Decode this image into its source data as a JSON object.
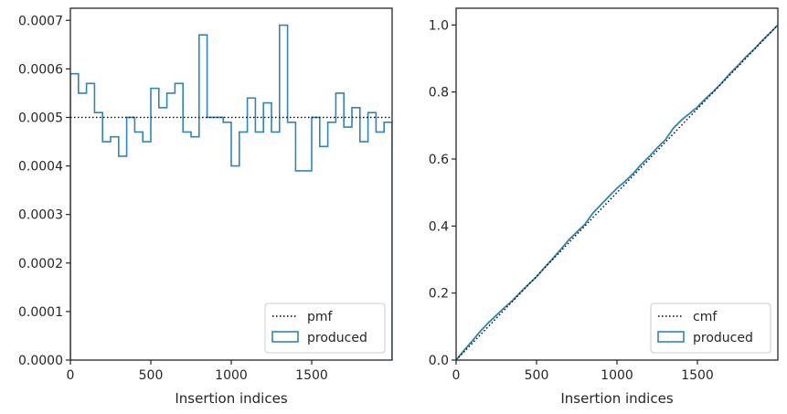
{
  "colors": {
    "produced": "#2e86b8",
    "reference": "#000000",
    "frame": "#262626",
    "legend_border": "#cccccc"
  },
  "chart_data": [
    {
      "type": "line",
      "subtype": "step-histogram",
      "title": "",
      "xlabel": "Insertion indices",
      "ylabel": "",
      "xlim": [
        0,
        2000
      ],
      "ylim": [
        0,
        0.000725
      ],
      "xticks": [
        0,
        500,
        1000,
        1500
      ],
      "xtick_labels": [
        "0",
        "500",
        "1000",
        "1500"
      ],
      "yticks": [
        0,
        0.0001,
        0.0002,
        0.0003,
        0.0004,
        0.0005,
        0.0006,
        0.0007
      ],
      "ytick_labels": [
        "0.0000",
        "0.0001",
        "0.0002",
        "0.0003",
        "0.0004",
        "0.0005",
        "0.0006",
        "0.0007"
      ],
      "legend_position": "lower-right",
      "series": [
        {
          "name": "pmf",
          "style": "dotted",
          "x": [
            0,
            2000
          ],
          "y": [
            0.0005,
            0.0005
          ]
        },
        {
          "name": "produced",
          "style": "step",
          "bin_edges": [
            0,
            50,
            100,
            150,
            200,
            250,
            300,
            350,
            400,
            450,
            500,
            550,
            600,
            650,
            700,
            750,
            800,
            850,
            900,
            950,
            1000,
            1050,
            1100,
            1150,
            1200,
            1250,
            1300,
            1350,
            1400,
            1450,
            1500,
            1550,
            1600,
            1650,
            1700,
            1750,
            1800,
            1850,
            1900,
            1950,
            2000
          ],
          "values": [
            0.00059,
            0.00055,
            0.00057,
            0.00051,
            0.00045,
            0.00046,
            0.00042,
            0.0005,
            0.00047,
            0.00045,
            0.00056,
            0.00052,
            0.00055,
            0.00057,
            0.00047,
            0.00046,
            0.00067,
            0.0005,
            0.0005,
            0.00049,
            0.0004,
            0.00047,
            0.00054,
            0.00047,
            0.00053,
            0.00047,
            0.00069,
            0.00049,
            0.00039,
            0.00039,
            0.0005,
            0.00044,
            0.00049,
            0.00055,
            0.00048,
            0.00052,
            0.00045,
            0.00051,
            0.00047,
            0.00049
          ]
        }
      ]
    },
    {
      "type": "line",
      "subtype": "cumulative",
      "title": "",
      "xlabel": "Insertion indices",
      "ylabel": "",
      "xlim": [
        0,
        2000
      ],
      "ylim": [
        0,
        1.05
      ],
      "xticks": [
        0,
        500,
        1000,
        1500
      ],
      "xtick_labels": [
        "0",
        "500",
        "1000",
        "1500"
      ],
      "yticks": [
        0,
        0.2,
        0.4,
        0.6,
        0.8,
        1.0
      ],
      "ytick_labels": [
        "0.0",
        "0.2",
        "0.4",
        "0.6",
        "0.8",
        "1.0"
      ],
      "legend_position": "lower-right",
      "series": [
        {
          "name": "cmf",
          "style": "dotted",
          "x": [
            0,
            2000
          ],
          "y": [
            0,
            1.0
          ]
        },
        {
          "name": "produced",
          "style": "line",
          "x": [
            0,
            50,
            100,
            150,
            200,
            250,
            300,
            350,
            400,
            450,
            500,
            550,
            600,
            650,
            700,
            750,
            800,
            850,
            900,
            950,
            1000,
            1050,
            1100,
            1150,
            1200,
            1250,
            1300,
            1350,
            1400,
            1450,
            1500,
            1550,
            1600,
            1650,
            1700,
            1750,
            1800,
            1850,
            1900,
            1950,
            2000
          ],
          "y": [
            0,
            0.0295,
            0.057,
            0.0855,
            0.111,
            0.1335,
            0.1565,
            0.1775,
            0.2025,
            0.226,
            0.2485,
            0.2765,
            0.3025,
            0.33,
            0.3585,
            0.382,
            0.405,
            0.4385,
            0.4635,
            0.4885,
            0.513,
            0.533,
            0.5565,
            0.5835,
            0.607,
            0.6335,
            0.657,
            0.6915,
            0.716,
            0.7355,
            0.755,
            0.78,
            0.802,
            0.8265,
            0.854,
            0.878,
            0.904,
            0.9265,
            0.952,
            0.9755,
            1.0
          ]
        }
      ]
    }
  ]
}
